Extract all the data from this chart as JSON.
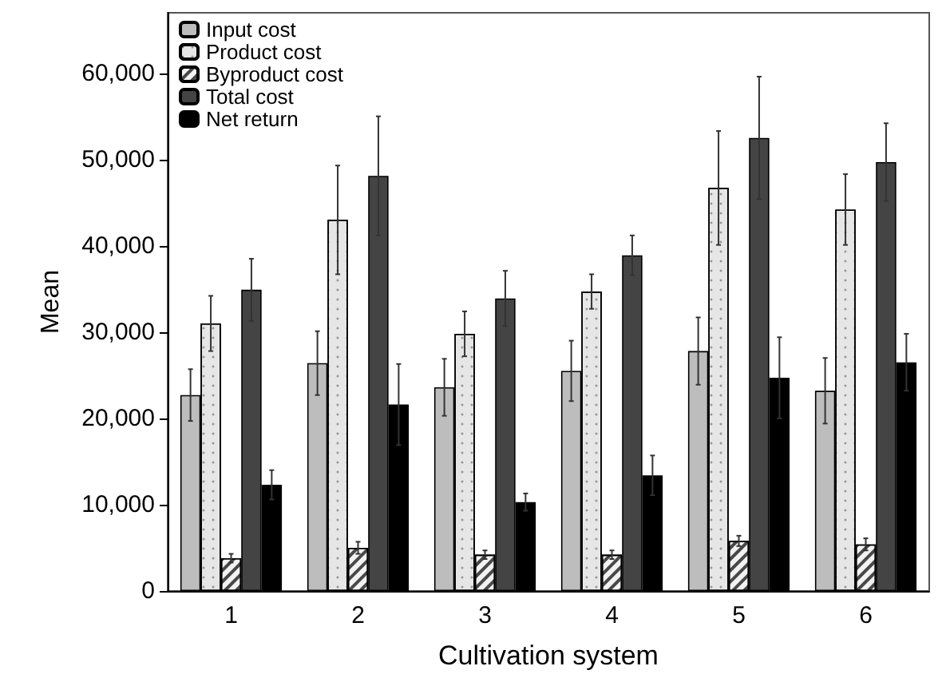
{
  "chart_data": {
    "type": "bar",
    "xlabel": "Cultivation system",
    "ylabel": "Mean",
    "categories": [
      "1",
      "2",
      "3",
      "4",
      "5",
      "6"
    ],
    "series": [
      {
        "name": "Input cost",
        "color": "#bdbdbd",
        "values": [
          22700,
          26400,
          23600,
          25500,
          27800,
          23200
        ],
        "errors": [
          3000,
          3700,
          3300,
          3500,
          3900,
          3800
        ]
      },
      {
        "name": "Product cost",
        "color": "#e6e6e6",
        "values": [
          31000,
          43000,
          29800,
          34700,
          46700,
          44200
        ],
        "errors": [
          3200,
          6300,
          2600,
          2000,
          6600,
          4100
        ]
      },
      {
        "name": "Byproduct cost",
        "color": "#f2f2f2",
        "values": [
          3800,
          5000,
          4200,
          4200,
          5800,
          5400
        ],
        "errors": [
          500,
          700,
          500,
          500,
          600,
          700
        ]
      },
      {
        "name": "Total cost",
        "color": "#444444",
        "values": [
          34900,
          48100,
          33900,
          38900,
          52500,
          49700
        ],
        "errors": [
          3600,
          6900,
          3200,
          2300,
          7100,
          4500
        ]
      },
      {
        "name": "Net return",
        "color": "#000000",
        "values": [
          12300,
          21600,
          10300,
          13400,
          24700,
          26500
        ],
        "errors": [
          1700,
          4700,
          1000,
          2300,
          4700,
          3300
        ]
      }
    ],
    "ylim": [
      0,
      67000
    ],
    "yticks": [
      0,
      {
        "value": 10000,
        "label": "10,000"
      },
      {
        "value": 20000,
        "label": "20,000"
      },
      {
        "value": 30000,
        "label": "30,000"
      },
      {
        "value": 40000,
        "label": "40,000"
      },
      {
        "value": 50000,
        "label": "50,000"
      },
      {
        "value": 60000,
        "label": "60,000"
      }
    ],
    "grid": false,
    "legend": "top left"
  }
}
